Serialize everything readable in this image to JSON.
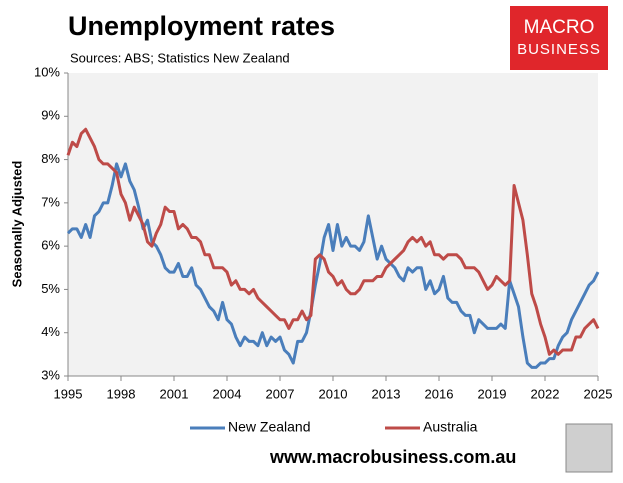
{
  "chart_data": {
    "type": "line",
    "title": "Unemployment rates",
    "subtitle": "Sources: ABS; Statistics New Zealand",
    "y_label": "Seasonally Adjusted",
    "x": [
      1995,
      1995.25,
      1995.5,
      1995.75,
      1996,
      1996.25,
      1996.5,
      1996.75,
      1997,
      1997.25,
      1997.5,
      1997.75,
      1998,
      1998.25,
      1998.5,
      1998.75,
      1999,
      1999.25,
      1999.5,
      1999.75,
      2000,
      2000.25,
      2000.5,
      2000.75,
      2001,
      2001.25,
      2001.5,
      2001.75,
      2002,
      2002.25,
      2002.5,
      2002.75,
      2003,
      2003.25,
      2003.5,
      2003.75,
      2004,
      2004.25,
      2004.5,
      2004.75,
      2005,
      2005.25,
      2005.5,
      2005.75,
      2006,
      2006.25,
      2006.5,
      2006.75,
      2007,
      2007.25,
      2007.5,
      2007.75,
      2008,
      2008.25,
      2008.5,
      2008.75,
      2009,
      2009.25,
      2009.5,
      2009.75,
      2010,
      2010.25,
      2010.5,
      2010.75,
      2011,
      2011.25,
      2011.5,
      2011.75,
      2012,
      2012.25,
      2012.5,
      2012.75,
      2013,
      2013.25,
      2013.5,
      2013.75,
      2014,
      2014.25,
      2014.5,
      2014.75,
      2015,
      2015.25,
      2015.5,
      2015.75,
      2016,
      2016.25,
      2016.5,
      2016.75,
      2017,
      2017.25,
      2017.5,
      2017.75,
      2018,
      2018.25,
      2018.5,
      2018.75,
      2019,
      2019.25,
      2019.5,
      2019.75,
      2020,
      2020.25,
      2020.5,
      2020.75,
      2021,
      2021.25,
      2021.5,
      2021.75,
      2022,
      2022.25,
      2022.5,
      2022.75,
      2023,
      2023.25,
      2023.5,
      2023.75,
      2024,
      2024.25,
      2024.5,
      2024.75,
      2025
    ],
    "series": [
      {
        "name": "New Zealand",
        "color": "#4a7ebb",
        "values": [
          6.3,
          6.4,
          6.4,
          6.2,
          6.5,
          6.2,
          6.7,
          6.8,
          7.0,
          7.0,
          7.4,
          7.9,
          7.6,
          7.9,
          7.5,
          7.3,
          6.9,
          6.4,
          6.6,
          6.1,
          6.0,
          5.8,
          5.5,
          5.4,
          5.4,
          5.6,
          5.3,
          5.3,
          5.5,
          5.1,
          5.0,
          4.8,
          4.6,
          4.5,
          4.3,
          4.7,
          4.3,
          4.2,
          3.9,
          3.7,
          3.9,
          3.8,
          3.8,
          3.7,
          4.0,
          3.7,
          3.9,
          3.8,
          3.9,
          3.6,
          3.5,
          3.3,
          3.8,
          3.8,
          4.0,
          4.5,
          5.1,
          5.6,
          6.2,
          6.5,
          5.9,
          6.5,
          6.0,
          6.2,
          6.0,
          6.0,
          5.9,
          6.1,
          6.7,
          6.2,
          5.7,
          6.0,
          5.7,
          5.6,
          5.5,
          5.3,
          5.2,
          5.5,
          5.4,
          5.5,
          5.5,
          5.0,
          5.2,
          4.9,
          5.0,
          5.3,
          4.8,
          4.7,
          4.7,
          4.5,
          4.4,
          4.4,
          4.0,
          4.3,
          4.2,
          4.1,
          4.1,
          4.1,
          4.2,
          4.1,
          5.2,
          4.9,
          4.6,
          3.9,
          3.3,
          3.2,
          3.2,
          3.3,
          3.3,
          3.4,
          3.4,
          3.7,
          3.9,
          4.0,
          4.3,
          4.5,
          4.7,
          4.9,
          5.1,
          5.2,
          5.4
        ]
      },
      {
        "name": "Australia",
        "color": "#be4b48",
        "values": [
          8.1,
          8.4,
          8.3,
          8.6,
          8.7,
          8.5,
          8.3,
          8.0,
          7.9,
          7.9,
          7.8,
          7.7,
          7.2,
          7.0,
          6.6,
          6.9,
          6.7,
          6.5,
          6.1,
          6.0,
          6.3,
          6.5,
          6.9,
          6.8,
          6.8,
          6.4,
          6.5,
          6.4,
          6.2,
          6.2,
          6.1,
          5.8,
          5.8,
          5.5,
          5.5,
          5.5,
          5.4,
          5.1,
          5.2,
          5.0,
          5.0,
          4.9,
          5.0,
          4.8,
          4.7,
          4.6,
          4.5,
          4.4,
          4.3,
          4.3,
          4.1,
          4.3,
          4.3,
          4.5,
          4.3,
          4.4,
          5.7,
          5.8,
          5.7,
          5.4,
          5.3,
          5.1,
          5.2,
          5.0,
          4.9,
          4.9,
          5.0,
          5.2,
          5.2,
          5.2,
          5.3,
          5.3,
          5.5,
          5.6,
          5.7,
          5.8,
          5.9,
          6.1,
          6.2,
          6.1,
          6.2,
          6.0,
          6.1,
          5.8,
          5.8,
          5.7,
          5.8,
          5.8,
          5.8,
          5.7,
          5.5,
          5.5,
          5.5,
          5.4,
          5.2,
          5.0,
          5.1,
          5.3,
          5.2,
          5.1,
          5.2,
          7.4,
          7.0,
          6.6,
          5.8,
          4.9,
          4.6,
          4.2,
          3.9,
          3.5,
          3.6,
          3.5,
          3.6,
          3.6,
          3.6,
          3.9,
          3.9,
          4.1,
          4.2,
          4.3,
          4.1
        ]
      }
    ],
    "xlim": [
      1995,
      2025
    ],
    "xticks": [
      1995,
      1998,
      2001,
      2004,
      2007,
      2010,
      2013,
      2016,
      2019,
      2022,
      2025
    ],
    "ylim": [
      3,
      10
    ],
    "yticks": [
      {
        "value": 3,
        "label": "3%"
      },
      {
        "value": 4,
        "label": "4%"
      },
      {
        "value": 5,
        "label": "5%"
      },
      {
        "value": 6,
        "label": "6%"
      },
      {
        "value": 7,
        "label": "7%"
      },
      {
        "value": 8,
        "label": "8%"
      },
      {
        "value": 9,
        "label": "9%"
      },
      {
        "value": 10,
        "label": "10%"
      }
    ],
    "grid": false,
    "legend": "bottom"
  },
  "branding": {
    "logo": [
      "MACRO",
      "BUSINESS"
    ],
    "url": "www.macrobusiness.com.au"
  }
}
